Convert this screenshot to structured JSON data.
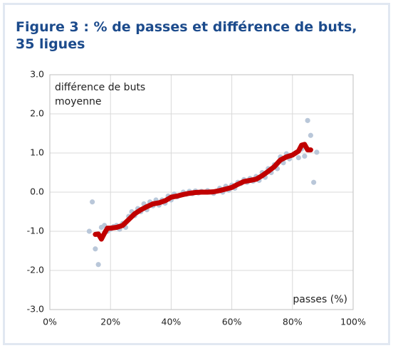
{
  "chart_data": {
    "type": "scatter",
    "title": "Figure 3 : % de passes et différence de buts, 35 ligues",
    "y_label": "différence de buts moyenne",
    "x_label": "passes (%)",
    "xlim": [
      0,
      100
    ],
    "ylim": [
      -3,
      3
    ],
    "xticks": [
      {
        "value": 0,
        "label": "0%"
      },
      {
        "value": 20,
        "label": "20%"
      },
      {
        "value": 40,
        "label": "40%"
      },
      {
        "value": 60,
        "label": "60%"
      },
      {
        "value": 80,
        "label": "80%"
      },
      {
        "value": 100,
        "label": "100%"
      }
    ],
    "yticks": [
      {
        "value": -3,
        "label": "-3.0"
      },
      {
        "value": -2,
        "label": "-2.0"
      },
      {
        "value": -1,
        "label": "-1.0"
      },
      {
        "value": 0,
        "label": "0.0"
      },
      {
        "value": 1,
        "label": "1.0"
      },
      {
        "value": 2,
        "label": "2.0"
      },
      {
        "value": 3,
        "label": "3.0"
      }
    ],
    "grid": true,
    "series": [
      {
        "type": "scatter",
        "color": "#b9c7d9",
        "x": [
          13,
          14,
          15,
          16,
          17,
          18,
          19,
          20,
          21,
          22,
          23,
          24,
          25,
          26,
          27,
          28,
          29,
          30,
          31,
          32,
          33,
          34,
          35,
          36,
          37,
          38,
          39,
          40,
          41,
          42,
          43,
          44,
          45,
          46,
          47,
          48,
          49,
          50,
          52,
          54,
          56,
          57,
          58,
          59,
          60,
          61,
          62,
          63,
          64,
          65,
          66,
          67,
          68,
          69,
          70,
          71,
          72,
          73,
          74,
          75,
          76,
          77,
          78,
          79,
          80,
          81,
          82,
          83,
          84,
          85,
          86,
          87,
          88
        ],
        "values": [
          -1.0,
          -0.25,
          -1.45,
          -1.85,
          -0.9,
          -0.85,
          -1.0,
          -0.95,
          -0.88,
          -0.85,
          -0.95,
          -0.8,
          -0.9,
          -0.62,
          -0.5,
          -0.6,
          -0.42,
          -0.5,
          -0.3,
          -0.45,
          -0.25,
          -0.35,
          -0.2,
          -0.33,
          -0.2,
          -0.28,
          -0.1,
          -0.2,
          -0.05,
          -0.12,
          -0.08,
          0.0,
          -0.05,
          0.02,
          -0.04,
          0.03,
          -0.02,
          0.02,
          0.04,
          -0.03,
          0.1,
          0.0,
          0.15,
          0.05,
          0.18,
          0.1,
          0.25,
          0.22,
          0.32,
          0.25,
          0.35,
          0.28,
          0.4,
          0.3,
          0.5,
          0.38,
          0.6,
          0.5,
          0.7,
          0.6,
          0.9,
          0.75,
          0.98,
          0.85,
          0.95,
          1.0,
          0.88,
          1.1,
          0.92,
          1.83,
          1.45,
          0.25,
          1.02
        ]
      },
      {
        "type": "line",
        "color": "#c00000",
        "x": [
          15,
          16,
          17,
          18,
          19,
          20,
          22,
          24,
          26,
          28,
          30,
          32,
          34,
          36,
          38,
          40,
          42,
          44,
          46,
          48,
          50,
          52,
          54,
          56,
          58,
          60,
          62,
          64,
          66,
          68,
          70,
          72,
          74,
          76,
          78,
          80,
          82,
          83,
          84,
          85,
          86
        ],
        "values": [
          -1.08,
          -1.07,
          -1.2,
          -1.05,
          -0.92,
          -0.92,
          -0.9,
          -0.85,
          -0.7,
          -0.55,
          -0.45,
          -0.37,
          -0.3,
          -0.27,
          -0.22,
          -0.13,
          -0.1,
          -0.06,
          -0.03,
          -0.01,
          0.0,
          0.0,
          0.01,
          0.04,
          0.08,
          0.12,
          0.2,
          0.27,
          0.3,
          0.33,
          0.42,
          0.53,
          0.65,
          0.82,
          0.9,
          0.95,
          1.05,
          1.2,
          1.22,
          1.08,
          1.08
        ]
      }
    ]
  }
}
